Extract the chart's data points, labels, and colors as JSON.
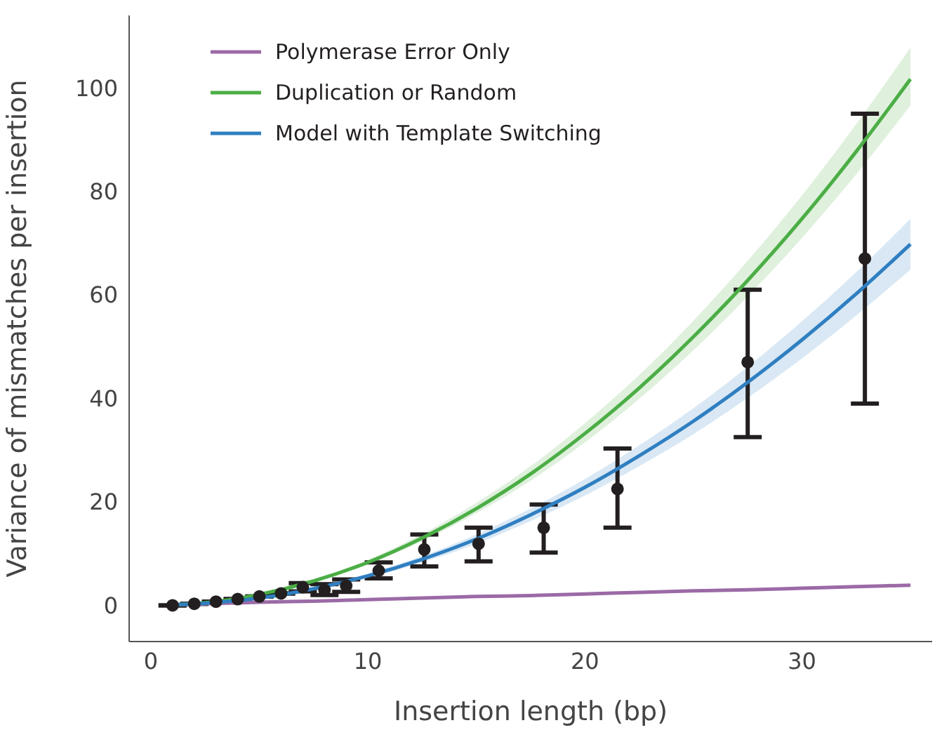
{
  "chart_data": {
    "type": "line",
    "xlabel": "Insertion length (bp)",
    "ylabel": "Variance of mismatches per insertion",
    "xlim": [
      -1,
      36
    ],
    "xticks": [
      0,
      10,
      20,
      30
    ],
    "ylim": [
      -7,
      114
    ],
    "yticks": [
      0,
      20,
      40,
      60,
      80,
      100
    ],
    "grid": false,
    "legend": "top left",
    "marker": "none",
    "line_style": "solid",
    "series": [
      {
        "name": "Polymerase Error Only",
        "color": "#9b6aa6",
        "x": [
          1,
          2.5,
          5,
          7.5,
          10,
          12.5,
          15,
          17.5,
          20,
          22.5,
          25,
          27.5,
          30,
          32.5,
          35
        ],
        "values": [
          0.1,
          0.3,
          0.6,
          0.8,
          1.1,
          1.4,
          1.7,
          1.9,
          2.2,
          2.5,
          2.8,
          3.0,
          3.3,
          3.6,
          3.9
        ]
      },
      {
        "name": "Duplication or Random",
        "color": "#4bae45",
        "x": [
          1,
          2.5,
          5,
          7.5,
          10,
          12.5,
          15,
          17.5,
          20,
          22.5,
          25,
          27.5,
          30,
          32.5,
          35
        ],
        "values": [
          0.1,
          0.5,
          2.1,
          4.7,
          8.3,
          13.0,
          18.7,
          25.4,
          33.2,
          42.0,
          51.9,
          62.8,
          74.7,
          87.7,
          101.7
        ],
        "lower": [
          0.1,
          0.5,
          2.0,
          4.5,
          7.9,
          12.4,
          17.8,
          24.1,
          31.5,
          39.9,
          49.3,
          59.7,
          71.0,
          83.3,
          96.6
        ],
        "upper": [
          0.1,
          0.5,
          2.2,
          5.0,
          8.8,
          13.8,
          19.8,
          26.9,
          35.2,
          44.5,
          55.0,
          66.6,
          79.2,
          93.0,
          107.8
        ]
      },
      {
        "name": "Model with Template Switching",
        "color": "#2f7fc1",
        "x": [
          1,
          2.5,
          5,
          7.5,
          10,
          12.5,
          15,
          17.5,
          20,
          22.5,
          25,
          27.5,
          30,
          32.5,
          35
        ],
        "values": [
          0.1,
          0.4,
          1.4,
          3.2,
          5.7,
          8.9,
          12.8,
          17.5,
          22.8,
          28.9,
          35.6,
          43.1,
          51.3,
          60.2,
          69.8
        ],
        "lower": [
          0.1,
          0.3,
          1.3,
          3.0,
          5.3,
          8.3,
          11.9,
          16.3,
          21.2,
          26.9,
          33.1,
          40.1,
          47.7,
          56.0,
          64.9
        ],
        "upper": [
          0.1,
          0.4,
          1.5,
          3.4,
          6.1,
          9.5,
          13.7,
          18.7,
          24.4,
          30.9,
          38.1,
          46.1,
          54.9,
          64.4,
          74.7
        ]
      },
      {
        "type": "scatter",
        "color": "#231f20",
        "marker": "circle",
        "x": [
          1,
          2,
          3,
          4,
          5,
          6,
          7,
          8,
          9,
          10.5,
          12.6,
          15.1,
          18.1,
          21.5,
          27.5,
          32.9
        ],
        "values": [
          0,
          0.3,
          0.7,
          1.2,
          1.7,
          2.3,
          3.5,
          3.0,
          3.8,
          6.7,
          10.8,
          11.9,
          15.0,
          22.5,
          47,
          67
        ],
        "errors": [
          null,
          null,
          null,
          null,
          null,
          null,
          [
            2.7,
            4.3
          ],
          [
            2.0,
            4.1
          ],
          [
            2.6,
            5.0
          ],
          [
            5.2,
            8.3
          ],
          [
            7.5,
            13.7
          ],
          [
            8.5,
            15.0
          ],
          [
            10.2,
            19.5
          ],
          [
            15,
            30.3
          ],
          [
            32.5,
            61
          ],
          [
            39,
            95
          ]
        ]
      }
    ]
  }
}
